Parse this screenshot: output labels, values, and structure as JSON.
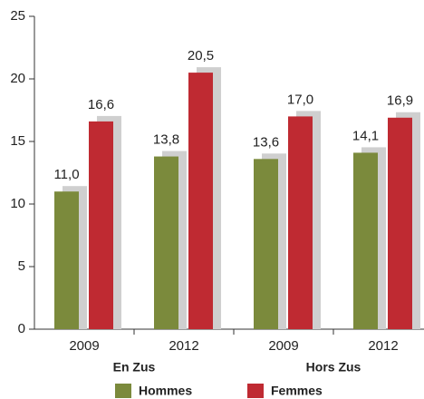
{
  "chart_data": {
    "type": "bar",
    "categories": [
      "2009",
      "2012",
      "2009",
      "2012"
    ],
    "groups": [
      "En Zus",
      "Hors Zus"
    ],
    "series": [
      {
        "name": "Hommes",
        "color": "#7b8a3c",
        "values": [
          11.0,
          13.8,
          13.6,
          14.1
        ],
        "value_labels": [
          "11,0",
          "13,8",
          "13,6",
          "14,1"
        ]
      },
      {
        "name": "Femmes",
        "color": "#bf2a32",
        "values": [
          16.6,
          20.5,
          17.0,
          16.9
        ],
        "value_labels": [
          "16,6",
          "20,5",
          "17,0",
          "16,9"
        ]
      }
    ],
    "ylim": [
      0,
      25
    ],
    "yticks": [
      0,
      5,
      10,
      15,
      20,
      25
    ],
    "grid": false
  }
}
